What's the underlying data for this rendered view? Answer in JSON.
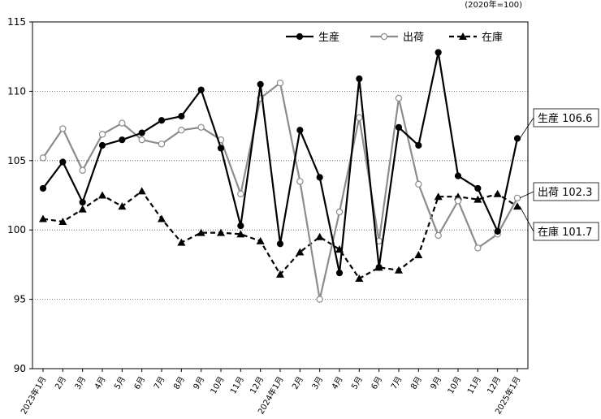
{
  "chart_data": {
    "type": "line",
    "unit_note": "(2020年=100)",
    "ylim": [
      90,
      115
    ],
    "yticks": [
      "90",
      "95",
      "100",
      "105",
      "110",
      "115"
    ],
    "grid": "horizontal dotted",
    "legend_position": "top-right",
    "categories": [
      "2023年1月",
      "2月",
      "3月",
      "4月",
      "5月",
      "6月",
      "7月",
      "8月",
      "9月",
      "10月",
      "11月",
      "12月",
      "2024年1月",
      "2月",
      "3月",
      "4月",
      "5月",
      "6月",
      "7月",
      "8月",
      "9月",
      "10月",
      "11月",
      "12月",
      "2025年1月"
    ],
    "series": [
      {
        "name": "生産",
        "style": "solid-filled-circle",
        "color": "#000000",
        "values": [
          103.0,
          104.9,
          102.0,
          106.1,
          106.5,
          107.0,
          107.9,
          108.2,
          110.1,
          105.9,
          100.3,
          110.5,
          99.0,
          107.2,
          103.8,
          96.9,
          110.9,
          97.3,
          107.4,
          106.1,
          112.8,
          103.9,
          103.0,
          99.9,
          106.6
        ],
        "end_label": "生産 106.6"
      },
      {
        "name": "出荷",
        "style": "solid-open-circle",
        "color": "#8c8c8c",
        "values": [
          105.2,
          107.3,
          104.3,
          106.9,
          107.7,
          106.5,
          106.2,
          107.2,
          107.4,
          106.5,
          102.6,
          109.5,
          110.6,
          103.5,
          95.0,
          101.3,
          108.1,
          99.2,
          109.5,
          103.3,
          99.6,
          102.1,
          98.7,
          99.7,
          102.3
        ],
        "end_label": "出荷 102.3"
      },
      {
        "name": "在庫",
        "style": "dashed-filled-triangle",
        "color": "#000000",
        "values": [
          100.8,
          100.6,
          101.5,
          102.5,
          101.7,
          102.8,
          100.8,
          99.1,
          99.8,
          99.8,
          99.7,
          99.2,
          96.8,
          98.4,
          99.5,
          98.6,
          96.5,
          97.3,
          97.1,
          98.2,
          102.4,
          102.4,
          102.2,
          102.6,
          101.7
        ],
        "end_label": "在庫 101.7"
      }
    ]
  }
}
